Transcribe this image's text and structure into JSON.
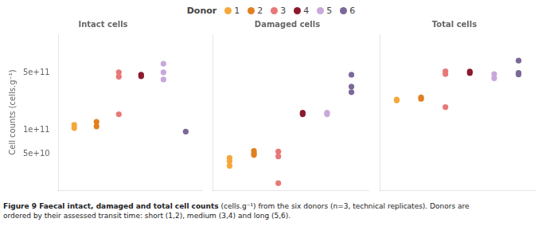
{
  "chart_data": [
    {
      "type": "scatter",
      "title": "Intact cells",
      "ylabel": "Cell counts (cells.g⁻¹)",
      "log": "y",
      "grid": false,
      "tick_labels": "y",
      "xlim": [
        0.3,
        6.7
      ],
      "xticks": [],
      "ylim": [
        18000000000.0,
        1500000000000.0
      ],
      "yticks": [
        {
          "value": 50000000000.0,
          "label": "5e+10"
        },
        {
          "value": 100000000000.0,
          "label": "1e+11"
        },
        {
          "value": 500000000000.0,
          "label": "5e+11"
        }
      ],
      "series": [
        {
          "name": "1",
          "color": "#F5A83A",
          "x": [
            1,
            1
          ],
          "values": [
            115000000000.0,
            105000000000.0
          ]
        },
        {
          "name": "2",
          "color": "#E08020",
          "x": [
            2,
            2
          ],
          "values": [
            125000000000.0,
            110000000000.0
          ]
        },
        {
          "name": "3",
          "color": "#E87878",
          "x": [
            3,
            3,
            3
          ],
          "values": [
            510000000000.0,
            450000000000.0,
            155000000000.0
          ]
        },
        {
          "name": "4",
          "color": "#8B1A2E",
          "x": [
            4,
            4
          ],
          "values": [
            475000000000.0,
            455000000000.0
          ]
        },
        {
          "name": "5",
          "color": "#C9A8DC",
          "x": [
            5,
            5,
            5
          ],
          "values": [
            650000000000.0,
            510000000000.0,
            415000000000.0
          ]
        },
        {
          "name": "6",
          "color": "#7B6898",
          "x": [
            6
          ],
          "values": [
            95000000000.0
          ]
        }
      ]
    },
    {
      "type": "scatter",
      "title": "Damaged cells",
      "log": "y",
      "grid": false,
      "tick_labels": false,
      "xlim": [
        0.3,
        6.7
      ],
      "xticks": [],
      "ylim": [
        18000000000.0,
        1500000000000.0
      ],
      "series": [
        {
          "name": "1",
          "color": "#F5A83A",
          "x": [
            1,
            1,
            1
          ],
          "values": [
            45000000000.0,
            41000000000.0,
            36000000000.0
          ]
        },
        {
          "name": "2",
          "color": "#E08020",
          "x": [
            2,
            2,
            2
          ],
          "values": [
            55000000000.0,
            51000000000.0,
            49000000000.0
          ]
        },
        {
          "name": "3",
          "color": "#E87878",
          "x": [
            3,
            3,
            3
          ],
          "values": [
            54000000000.0,
            47000000000.0,
            22000000000.0
          ]
        },
        {
          "name": "4",
          "color": "#8B1A2E",
          "x": [
            4,
            4
          ],
          "values": [
            162000000000.0,
            155000000000.0
          ]
        },
        {
          "name": "5",
          "color": "#C9A8DC",
          "x": [
            5,
            5
          ],
          "values": [
            162000000000.0,
            155000000000.0
          ]
        },
        {
          "name": "6",
          "color": "#7B6898",
          "x": [
            6,
            6,
            6
          ],
          "values": [
            475000000000.0,
            340000000000.0,
            290000000000.0
          ]
        }
      ]
    },
    {
      "type": "scatter",
      "title": "Total cells",
      "log": "y",
      "grid": false,
      "tick_labels": false,
      "xlim": [
        0.3,
        6.7
      ],
      "xticks": [],
      "ylim": [
        18000000000.0,
        1500000000000.0
      ],
      "series": [
        {
          "name": "1",
          "color": "#F5A83A",
          "x": [
            1,
            1
          ],
          "values": [
            235000000000.0,
            230000000000.0
          ]
        },
        {
          "name": "2",
          "color": "#E08020",
          "x": [
            2,
            2
          ],
          "values": [
            250000000000.0,
            240000000000.0
          ]
        },
        {
          "name": "3",
          "color": "#E87878",
          "x": [
            3,
            3,
            3
          ],
          "values": [
            525000000000.0,
            485000000000.0,
            190000000000.0
          ]
        },
        {
          "name": "4",
          "color": "#8B1A2E",
          "x": [
            4,
            4
          ],
          "values": [
            520000000000.0,
            500000000000.0
          ]
        },
        {
          "name": "5",
          "color": "#C9A8DC",
          "x": [
            5,
            5
          ],
          "values": [
            430000000000.0,
            485000000000.0
          ]
        },
        {
          "name": "6",
          "color": "#7B6898",
          "x": [
            6,
            6,
            6
          ],
          "values": [
            710000000000.0,
            500000000000.0,
            480000000000.0
          ]
        }
      ]
    }
  ],
  "legend": "top",
  "legend_title": "Donor",
  "caption": [
    "Figure 9 Faecal intact, damaged and total cell counts",
    "(cells.g⁻¹) from the six donors (n=3, technical replicates). Donors are",
    "ordered by their assessed transit time: short (1,2), medium (3,4) and long (5,6)."
  ]
}
